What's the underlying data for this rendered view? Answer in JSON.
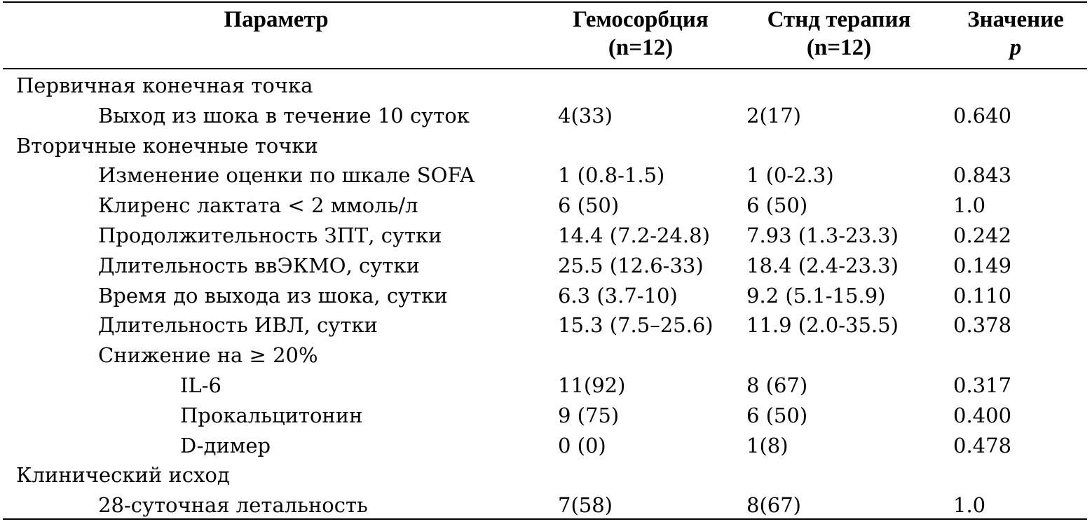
{
  "header": {
    "parameter": "Параметр",
    "group1_line1": "Гемосорбция",
    "group1_line2": "(n=12)",
    "group2_line1": "Стнд терапия",
    "group2_line2": "(n=12)",
    "pvalue_line1": "Значение",
    "pvalue_line2": "p"
  },
  "rows": [
    {
      "label": "Первичная конечная точка",
      "level": 0,
      "g1": "",
      "g2": "",
      "p": ""
    },
    {
      "label": "Выход из шока в течение 10 суток",
      "level": 1,
      "g1": "4(33)",
      "g2": "2(17)",
      "p": "0.640"
    },
    {
      "label": "Вторичные конечные точки",
      "level": 0,
      "g1": "",
      "g2": "",
      "p": ""
    },
    {
      "label": "Изменение оценки по шкале SOFA",
      "level": 1,
      "g1": "1 (0.8-1.5)",
      "g2": "1 (0-2.3)",
      "p": "0.843"
    },
    {
      "label": "Клиренс лактата < 2 ммоль/л",
      "level": 1,
      "g1": "6 (50)",
      "g2": "6 (50)",
      "p": "1.0"
    },
    {
      "label": "Продолжительность ЗПТ, сутки",
      "level": 1,
      "g1": "14.4 (7.2-24.8)",
      "g2": "7.93 (1.3-23.3)",
      "p": "0.242"
    },
    {
      "label": "Длительность ввЭКМО, сутки",
      "level": 1,
      "g1": "25.5 (12.6-33)",
      "g2": "18.4 (2.4-23.3)",
      "p": "0.149"
    },
    {
      "label": "Время до выхода из шока, сутки",
      "level": 1,
      "g1": "6.3 (3.7-10)",
      "g2": "9.2 (5.1-15.9)",
      "p": "0.110"
    },
    {
      "label": "Длительность ИВЛ, сутки",
      "level": 1,
      "g1": "15.3 (7.5–25.6)",
      "g2": "11.9 (2.0-35.5)",
      "p": "0.378"
    },
    {
      "label": "Снижение на ≥ 20%",
      "level": 1,
      "g1": "",
      "g2": "",
      "p": ""
    },
    {
      "label": "IL-6",
      "level": 2,
      "g1": "11(92)",
      "g2": "8 (67)",
      "p": "0.317"
    },
    {
      "label": "Прокальцитонин",
      "level": 2,
      "g1": "9 (75)",
      "g2": "6 (50)",
      "p": "0.400"
    },
    {
      "label": "D-димер",
      "level": 2,
      "g1": "0 (0)",
      "g2": "1(8)",
      "p": "0.478"
    },
    {
      "label": "Клинический исход",
      "level": 0,
      "g1": "",
      "g2": "",
      "p": ""
    },
    {
      "label": "28-суточная летальность",
      "level": 1,
      "g1": "7(58)",
      "g2": "8(67)",
      "p": "1.0"
    }
  ]
}
